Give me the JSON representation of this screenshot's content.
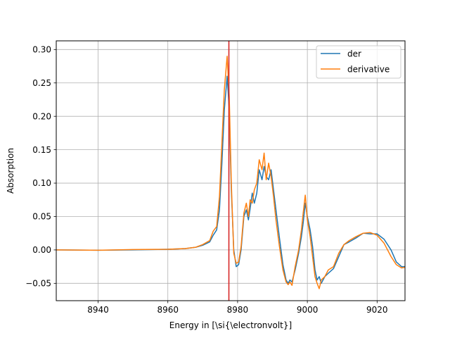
{
  "chart_data": {
    "type": "line",
    "title": "",
    "xlabel": "Energy in [\\si{\\electronvolt}]",
    "ylabel": "Absorption",
    "xlim": [
      8928,
      9028
    ],
    "ylim": [
      -0.076,
      0.313
    ],
    "xticks": [
      8940,
      8960,
      8980,
      9000,
      9020
    ],
    "yticks": [
      -0.05,
      0.0,
      0.05,
      0.1,
      0.15,
      0.2,
      0.25,
      0.3
    ],
    "ytick_labels": [
      "−0.05",
      "0.00",
      "0.05",
      "0.10",
      "0.15",
      "0.20",
      "0.25",
      "0.30"
    ],
    "grid": true,
    "legend_position": "top-right",
    "vline": {
      "x": 8977.5,
      "color": "#d62728"
    },
    "series": [
      {
        "name": "der",
        "color": "#1f77b4",
        "x": [
          8928,
          8940,
          8950,
          8960,
          8965,
          8968,
          8970,
          8972,
          8973,
          8974,
          8974.8,
          8975.5,
          8976.2,
          8977,
          8977.6,
          8978.2,
          8978.9,
          8979.6,
          8980.3,
          8981,
          8981.8,
          8982.5,
          8983.1,
          8983.6,
          8984.2,
          8984.8,
          8985.5,
          8986.2,
          8987,
          8987.6,
          8988.2,
          8988.9,
          8989.6,
          8990.3,
          8991,
          8992,
          8993,
          8993.9,
          8994.5,
          8995,
          8995.6,
          8996.5,
          8997.5,
          8998.3,
          8998.8,
          8999.4,
          9000,
          9000.8,
          9001.5,
          9002.2,
          9002.8,
          9003.4,
          9004,
          9005,
          9006,
          9007.5,
          9009,
          9010.5,
          9012,
          9014,
          9016,
          9018,
          9020,
          9022,
          9024,
          9025.5,
          9027,
          9028
        ],
        "y": [
          0.0,
          -0.0005,
          0.0,
          0.001,
          0.002,
          0.004,
          0.007,
          0.012,
          0.022,
          0.03,
          0.06,
          0.13,
          0.21,
          0.26,
          0.21,
          0.09,
          0.0,
          -0.025,
          -0.022,
          0.0,
          0.05,
          0.06,
          0.045,
          0.062,
          0.085,
          0.07,
          0.085,
          0.12,
          0.105,
          0.125,
          0.11,
          0.105,
          0.12,
          0.09,
          0.06,
          0.018,
          -0.022,
          -0.045,
          -0.05,
          -0.045,
          -0.048,
          -0.03,
          -0.005,
          0.02,
          0.04,
          0.07,
          0.05,
          0.03,
          0.005,
          -0.03,
          -0.045,
          -0.04,
          -0.05,
          -0.04,
          -0.035,
          -0.028,
          -0.01,
          0.008,
          0.012,
          0.018,
          0.025,
          0.024,
          0.024,
          0.016,
          0.0,
          -0.018,
          -0.025,
          -0.025
        ]
      },
      {
        "name": "derivative",
        "color": "#ff7f0e",
        "x": [
          8928,
          8940,
          8950,
          8960,
          8965,
          8968,
          8970,
          8972,
          8973,
          8974,
          8974.8,
          8975.5,
          8976.2,
          8977,
          8977.6,
          8978.2,
          8978.9,
          8979.6,
          8980.3,
          8981,
          8981.8,
          8982.5,
          8983.1,
          8983.6,
          8984.2,
          8984.8,
          8985.5,
          8986.2,
          8987,
          8987.6,
          8988.2,
          8988.9,
          8989.6,
          8990.3,
          8991,
          8992,
          8993,
          8993.9,
          8994.5,
          8995,
          8995.6,
          8996.5,
          8997.5,
          8998.3,
          8998.8,
          8999.4,
          9000,
          9000.8,
          9001.5,
          9002.2,
          9002.8,
          9003.4,
          9004,
          9005,
          9006,
          9007.5,
          9009,
          9010.5,
          9012,
          9014,
          9016,
          9018,
          9020,
          9022,
          9024,
          9025.5,
          9027,
          9028
        ],
        "y": [
          0.0,
          -0.0005,
          0.0005,
          0.001,
          0.002,
          0.004,
          0.008,
          0.014,
          0.028,
          0.035,
          0.08,
          0.16,
          0.24,
          0.29,
          0.23,
          0.1,
          -0.005,
          -0.02,
          -0.018,
          0.005,
          0.055,
          0.07,
          0.05,
          0.075,
          0.07,
          0.09,
          0.1,
          0.135,
          0.12,
          0.145,
          0.105,
          0.13,
          0.11,
          0.08,
          0.045,
          0.005,
          -0.03,
          -0.048,
          -0.052,
          -0.048,
          -0.053,
          -0.025,
          0.0,
          0.03,
          0.055,
          0.082,
          0.045,
          0.02,
          -0.01,
          -0.04,
          -0.05,
          -0.058,
          -0.045,
          -0.04,
          -0.03,
          -0.025,
          -0.005,
          0.008,
          0.014,
          0.02,
          0.025,
          0.026,
          0.022,
          0.01,
          -0.01,
          -0.022,
          -0.027,
          -0.026
        ]
      }
    ]
  }
}
